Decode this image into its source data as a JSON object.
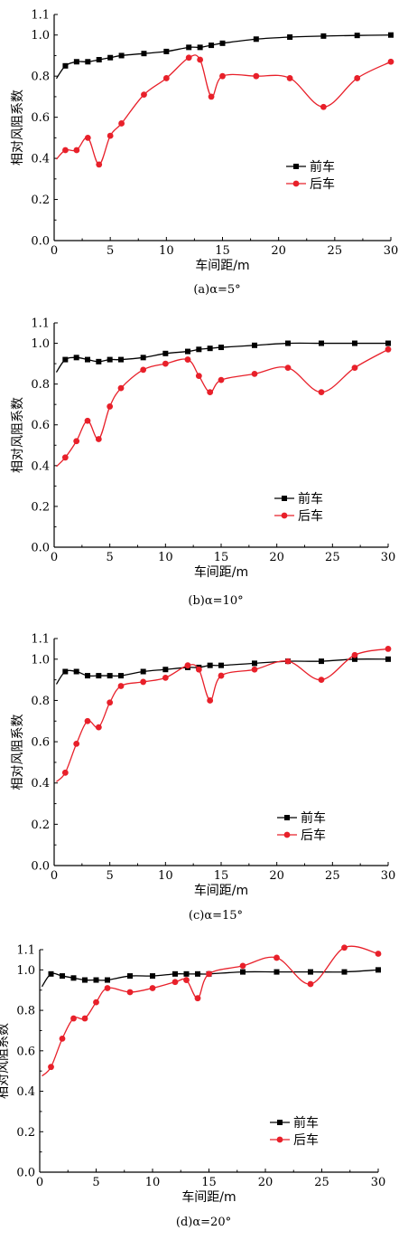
{
  "chart_data": [
    {
      "type": "line",
      "caption": "(a)α=5°",
      "xlabel": "车间距/m",
      "ylabel": "相对风阻系数",
      "xlim": [
        0,
        30
      ],
      "ylim": [
        0.0,
        1.1
      ],
      "xticks": [
        0,
        5,
        10,
        15,
        20,
        25,
        30
      ],
      "yticks": [
        0.0,
        0.2,
        0.4,
        0.6,
        0.8,
        1.0
      ],
      "ytick_top": 1.1,
      "legend_position": "right",
      "series": [
        {
          "name": "前车",
          "color": "#000000",
          "marker": "square",
          "x": [
            1,
            2,
            3,
            4,
            5,
            6,
            8,
            10,
            12,
            13,
            14,
            15,
            18,
            21,
            24,
            27,
            30
          ],
          "y": [
            0.85,
            0.87,
            0.87,
            0.88,
            0.89,
            0.9,
            0.91,
            0.92,
            0.94,
            0.94,
            0.95,
            0.96,
            0.98,
            0.99,
            0.995,
            0.998,
            1.0
          ]
        },
        {
          "name": "后车",
          "color": "#e8202a",
          "marker": "circle",
          "x": [
            1,
            2,
            3,
            4,
            5,
            6,
            8,
            10,
            12,
            13,
            14,
            15,
            18,
            21,
            24,
            27,
            30
          ],
          "y": [
            0.44,
            0.44,
            0.5,
            0.37,
            0.51,
            0.57,
            0.71,
            0.79,
            0.89,
            0.88,
            0.7,
            0.8,
            0.8,
            0.79,
            0.65,
            0.79,
            0.87
          ]
        }
      ]
    },
    {
      "type": "line",
      "caption": "(b)α=10°",
      "xlabel": "车间距/m",
      "ylabel": "相对风阻系数",
      "xlim": [
        0,
        30
      ],
      "ylim": [
        0.0,
        1.1
      ],
      "xticks": [
        0,
        5,
        10,
        15,
        20,
        25,
        30
      ],
      "yticks": [
        0.0,
        0.2,
        0.4,
        0.6,
        0.8,
        1.0
      ],
      "ytick_top": 1.1,
      "legend_position": "right",
      "series": [
        {
          "name": "前车",
          "color": "#000000",
          "marker": "square",
          "x": [
            1,
            2,
            3,
            4,
            5,
            6,
            8,
            10,
            12,
            13,
            14,
            15,
            18,
            21,
            24,
            27,
            30
          ],
          "y": [
            0.92,
            0.93,
            0.92,
            0.91,
            0.92,
            0.92,
            0.93,
            0.95,
            0.96,
            0.97,
            0.975,
            0.98,
            0.99,
            1.0,
            1.0,
            1.0,
            1.0
          ]
        },
        {
          "name": "后车",
          "color": "#e8202a",
          "marker": "circle",
          "x": [
            1,
            2,
            3,
            4,
            5,
            6,
            8,
            10,
            12,
            13,
            14,
            15,
            18,
            21,
            24,
            27,
            30
          ],
          "y": [
            0.44,
            0.52,
            0.62,
            0.53,
            0.69,
            0.78,
            0.87,
            0.9,
            0.92,
            0.84,
            0.76,
            0.82,
            0.85,
            0.88,
            0.76,
            0.88,
            0.97
          ]
        }
      ]
    },
    {
      "type": "line",
      "caption": "(c)α=15°",
      "xlabel": "车间距/m",
      "ylabel": "相对风阻系数",
      "xlim": [
        0,
        30
      ],
      "ylim": [
        0.0,
        1.1
      ],
      "xticks": [
        0,
        5,
        10,
        15,
        20,
        25,
        30
      ],
      "yticks": [
        0.0,
        0.2,
        0.4,
        0.6,
        0.8,
        1.0
      ],
      "ytick_top": 1.1,
      "legend_position": "bottom-right",
      "series": [
        {
          "name": "前车",
          "color": "#000000",
          "marker": "square",
          "x": [
            1,
            2,
            3,
            4,
            5,
            6,
            8,
            10,
            12,
            13,
            14,
            15,
            18,
            21,
            24,
            27,
            30
          ],
          "y": [
            0.94,
            0.94,
            0.92,
            0.92,
            0.92,
            0.92,
            0.94,
            0.95,
            0.96,
            0.96,
            0.97,
            0.97,
            0.98,
            0.99,
            0.99,
            1.0,
            1.0
          ]
        },
        {
          "name": "后车",
          "color": "#e8202a",
          "marker": "circle",
          "x": [
            1,
            2,
            3,
            4,
            5,
            6,
            8,
            10,
            12,
            13,
            14,
            15,
            18,
            21,
            24,
            27,
            30
          ],
          "y": [
            0.45,
            0.59,
            0.7,
            0.67,
            0.79,
            0.87,
            0.89,
            0.91,
            0.97,
            0.95,
            0.8,
            0.92,
            0.95,
            0.99,
            0.9,
            1.02,
            1.05
          ]
        }
      ]
    },
    {
      "type": "line",
      "caption": "(d)α=20°",
      "xlabel": "车间距/m",
      "ylabel": "相对风阻系数",
      "xlim": [
        0,
        30
      ],
      "ylim": [
        0.0,
        1.1
      ],
      "xticks": [
        0,
        5,
        10,
        15,
        20,
        25,
        30
      ],
      "yticks": [
        0.0,
        0.2,
        0.4,
        0.6,
        0.8,
        1.0
      ],
      "ytick_top": 1.1,
      "legend_position": "bottom-right",
      "series": [
        {
          "name": "前车",
          "color": "#000000",
          "marker": "square",
          "x": [
            1,
            2,
            3,
            4,
            5,
            6,
            8,
            10,
            12,
            13,
            14,
            15,
            18,
            21,
            24,
            27,
            30
          ],
          "y": [
            0.98,
            0.97,
            0.96,
            0.95,
            0.95,
            0.95,
            0.97,
            0.97,
            0.98,
            0.98,
            0.98,
            0.98,
            0.99,
            0.99,
            0.99,
            0.99,
            1.0
          ]
        },
        {
          "name": "后车",
          "color": "#e8202a",
          "marker": "circle",
          "x": [
            1,
            2,
            3,
            4,
            5,
            6,
            8,
            10,
            12,
            13,
            14,
            15,
            18,
            21,
            24,
            27,
            30
          ],
          "y": [
            0.52,
            0.66,
            0.76,
            0.76,
            0.84,
            0.91,
            0.89,
            0.91,
            0.94,
            0.95,
            0.86,
            0.98,
            1.02,
            1.06,
            0.93,
            1.11,
            1.08
          ]
        }
      ]
    }
  ]
}
